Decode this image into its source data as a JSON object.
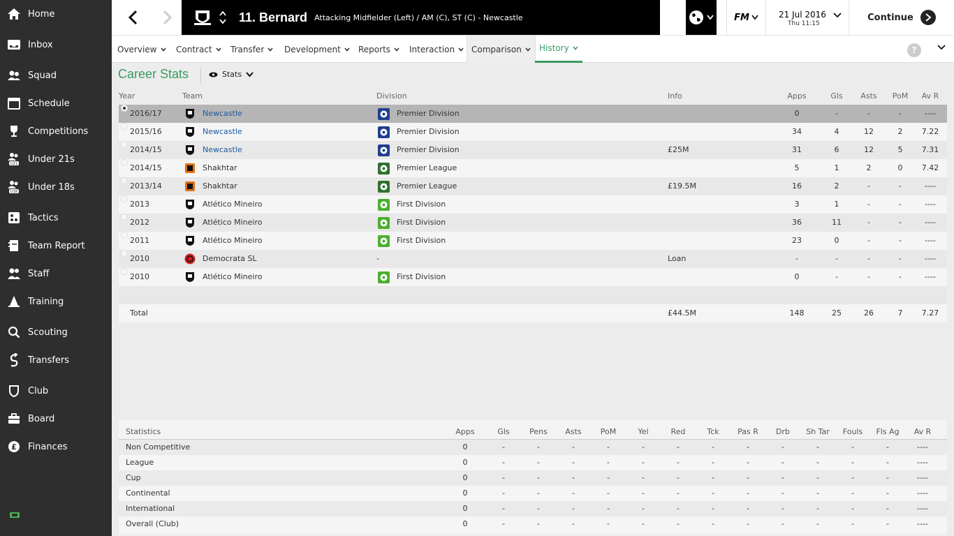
{
  "sidebar": {
    "items": [
      {
        "label": "Home",
        "icon": "home-icon"
      },
      {
        "label": "Inbox",
        "icon": "inbox-icon"
      },
      {
        "label": "Squad",
        "icon": "squad-icon"
      },
      {
        "label": "Schedule",
        "icon": "calendar-icon"
      },
      {
        "label": "Competitions",
        "icon": "trophy-icon"
      },
      {
        "label": "Under 21s",
        "icon": "under21-icon"
      },
      {
        "label": "Under 18s",
        "icon": "under18-icon"
      },
      {
        "label": "Tactics",
        "icon": "tactics-icon"
      },
      {
        "label": "Team Report",
        "icon": "report-icon"
      },
      {
        "label": "Staff",
        "icon": "staff-icon"
      },
      {
        "label": "Training",
        "icon": "training-icon"
      },
      {
        "label": "Scouting",
        "icon": "scouting-icon"
      },
      {
        "label": "Transfers",
        "icon": "transfers-icon"
      },
      {
        "label": "Club",
        "icon": "club-icon"
      },
      {
        "label": "Board",
        "icon": "board-icon"
      },
      {
        "label": "Finances",
        "icon": "finances-icon"
      }
    ]
  },
  "header": {
    "player_name": "11. Bernard",
    "player_subtitle": "Attacking Midfielder (Left) / AM (C), ST (C) - Newcastle",
    "fm_label": "FM",
    "date": "21 Jul 2016",
    "day_time": "Thu 11:15",
    "continue_label": "Continue"
  },
  "tabs": [
    {
      "label": "Overview"
    },
    {
      "label": "Contract"
    },
    {
      "label": "Transfer"
    },
    {
      "label": "Development"
    },
    {
      "label": "Reports"
    },
    {
      "label": "Interaction"
    },
    {
      "label": "Comparison"
    },
    {
      "label": "History"
    }
  ],
  "help_label": "?",
  "section": {
    "title": "Career Stats",
    "view_label": "Stats"
  },
  "career": {
    "headers": {
      "year": "Year",
      "team": "Team",
      "division": "Division",
      "info": "Info",
      "apps": "Apps",
      "gls": "Gls",
      "asts": "Asts",
      "pom": "PoM",
      "avr": "Av R"
    },
    "rows": [
      {
        "year": "2016/17",
        "team": "Newcastle",
        "team_link": true,
        "team_color": "#000000",
        "division": "Premier Division",
        "div_color": "#1f3f8f",
        "info": "",
        "apps": "0",
        "gls": "-",
        "asts": "-",
        "pom": "-",
        "avr": "----"
      },
      {
        "year": "2015/16",
        "team": "Newcastle",
        "team_link": true,
        "team_color": "#000000",
        "division": "Premier Division",
        "div_color": "#1f3f8f",
        "info": "",
        "apps": "34",
        "gls": "4",
        "asts": "12",
        "pom": "2",
        "avr": "7.22"
      },
      {
        "year": "2014/15",
        "team": "Newcastle",
        "team_link": true,
        "team_color": "#000000",
        "division": "Premier Division",
        "div_color": "#1f3f8f",
        "info": "£25M",
        "apps": "31",
        "gls": "6",
        "asts": "12",
        "pom": "5",
        "avr": "7.31"
      },
      {
        "year": "2014/15",
        "team": "Shakhtar",
        "team_link": false,
        "team_color": "#e0700f",
        "division": "Premier League",
        "div_color": "#2f6f2f",
        "info": "",
        "apps": "5",
        "gls": "1",
        "asts": "2",
        "pom": "0",
        "avr": "7.42"
      },
      {
        "year": "2013/14",
        "team": "Shakhtar",
        "team_link": false,
        "team_color": "#e0700f",
        "division": "Premier League",
        "div_color": "#2f6f2f",
        "info": "£19.5M",
        "apps": "16",
        "gls": "2",
        "asts": "-",
        "pom": "-",
        "avr": "----"
      },
      {
        "year": "2013",
        "team": "Atlético Mineiro",
        "team_link": false,
        "team_color": "#000000",
        "division": "First Division",
        "div_color": "#4caf2f",
        "info": "",
        "apps": "3",
        "gls": "1",
        "asts": "-",
        "pom": "-",
        "avr": "----"
      },
      {
        "year": "2012",
        "team": "Atlético Mineiro",
        "team_link": false,
        "team_color": "#000000",
        "division": "First Division",
        "div_color": "#4caf2f",
        "info": "",
        "apps": "36",
        "gls": "11",
        "asts": "-",
        "pom": "-",
        "avr": "----"
      },
      {
        "year": "2011",
        "team": "Atlético Mineiro",
        "team_link": false,
        "team_color": "#000000",
        "division": "First Division",
        "div_color": "#4caf2f",
        "info": "",
        "apps": "23",
        "gls": "0",
        "asts": "-",
        "pom": "-",
        "avr": "----"
      },
      {
        "year": "2010",
        "team": "Democrata SL",
        "team_link": false,
        "team_color": "#cc1f1f",
        "division": "-",
        "div_color": "",
        "info": "Loan",
        "apps": "-",
        "gls": "-",
        "asts": "-",
        "pom": "-",
        "avr": "----"
      },
      {
        "year": "2010",
        "team": "Atlético Mineiro",
        "team_link": false,
        "team_color": "#000000",
        "division": "First Division",
        "div_color": "#4caf2f",
        "info": "",
        "apps": "0",
        "gls": "-",
        "asts": "-",
        "pom": "-",
        "avr": "----"
      }
    ],
    "total": {
      "label": "Total",
      "info": "£44.5M",
      "apps": "148",
      "gls": "25",
      "asts": "26",
      "pom": "7",
      "avr": "7.27"
    }
  },
  "statistics": {
    "title": "Statistics",
    "columns": [
      "Apps",
      "Gls",
      "Pens",
      "Asts",
      "PoM",
      "Yel",
      "Red",
      "Tck",
      "Pas R",
      "Drb",
      "Sh Tar",
      "Fouls",
      "Fls Ag",
      "Av R"
    ],
    "rows": [
      {
        "label": "Non Competitive",
        "values": [
          "0",
          "-",
          "-",
          "-",
          "-",
          "-",
          "-",
          "-",
          "-",
          "-",
          "-",
          "-",
          "-",
          "----"
        ]
      },
      {
        "label": "League",
        "values": [
          "0",
          "-",
          "-",
          "-",
          "-",
          "-",
          "-",
          "-",
          "-",
          "-",
          "-",
          "-",
          "-",
          "----"
        ]
      },
      {
        "label": "Cup",
        "values": [
          "0",
          "-",
          "-",
          "-",
          "-",
          "-",
          "-",
          "-",
          "-",
          "-",
          "-",
          "-",
          "-",
          "----"
        ]
      },
      {
        "label": "Continental",
        "values": [
          "0",
          "-",
          "-",
          "-",
          "-",
          "-",
          "-",
          "-",
          "-",
          "-",
          "-",
          "-",
          "-",
          "----"
        ]
      },
      {
        "label": "International",
        "values": [
          "0",
          "-",
          "-",
          "-",
          "-",
          "-",
          "-",
          "-",
          "-",
          "-",
          "-",
          "-",
          "-",
          "----"
        ]
      },
      {
        "label": "Overall (Club)",
        "values": [
          "0",
          "-",
          "-",
          "-",
          "-",
          "-",
          "-",
          "-",
          "-",
          "-",
          "-",
          "-",
          "-",
          "----"
        ]
      }
    ]
  },
  "colors": {
    "accent": "#3a9a62",
    "link": "#1a5aa0",
    "sidebar": "#2e2e2e"
  }
}
